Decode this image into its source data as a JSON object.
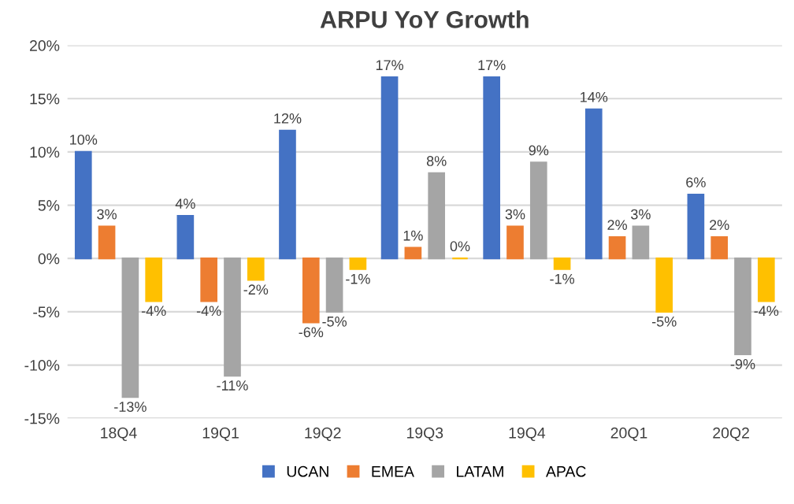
{
  "chart_data": {
    "type": "bar",
    "title": "ARPU YoY Growth",
    "categories": [
      "18Q4",
      "19Q1",
      "19Q2",
      "19Q3",
      "19Q4",
      "20Q1",
      "20Q2"
    ],
    "series": [
      {
        "name": "UCAN",
        "color": "#4472c4",
        "values": [
          10,
          4,
          12,
          17,
          17,
          14,
          6
        ],
        "value_labels": [
          "10%",
          "4%",
          "12%",
          "17%",
          "17%",
          "14%",
          "6%"
        ]
      },
      {
        "name": "EMEA",
        "color": "#ed7d31",
        "values": [
          3,
          -4,
          -6,
          1,
          3,
          2,
          2
        ],
        "value_labels": [
          "3%",
          "-4%",
          "-6%",
          "1%",
          "3%",
          "2%",
          "2%"
        ]
      },
      {
        "name": "LATAM",
        "color": "#a5a5a5",
        "values": [
          -13,
          -11,
          -5,
          8,
          9,
          3,
          -9
        ],
        "value_labels": [
          "-13%",
          "-11%",
          "-5%",
          "8%",
          "9%",
          "3%",
          "-9%"
        ]
      },
      {
        "name": "APAC",
        "color": "#ffc000",
        "values": [
          -4,
          -2,
          -1,
          0,
          -1,
          -5,
          -4
        ],
        "value_labels": [
          "-4%",
          "-2%",
          "-1%",
          "0%",
          "-1%",
          "-5%",
          "-4%"
        ]
      }
    ],
    "ylim": [
      -15,
      20
    ],
    "yticks": [
      {
        "value": -15,
        "label": "-15%"
      },
      {
        "value": -10,
        "label": "-10%"
      },
      {
        "value": -5,
        "label": "-5%"
      },
      {
        "value": 0,
        "label": "0%"
      },
      {
        "value": 5,
        "label": "5%"
      },
      {
        "value": 10,
        "label": "10%"
      },
      {
        "value": 15,
        "label": "15%"
      },
      {
        "value": 20,
        "label": "20%"
      }
    ],
    "grid": "y",
    "legend": "bottom"
  }
}
